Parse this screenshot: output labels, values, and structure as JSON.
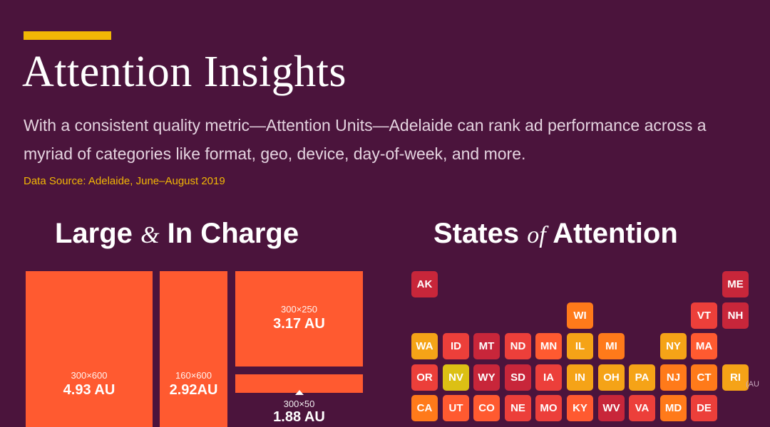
{
  "header": {
    "title": "Attention Insights",
    "subtitle": "With a consistent quality metric—Attention Units—Adelaide can rank ad performance across a myriad of categories like format, geo, device, day-of-week, and more.",
    "source": "Data Source: Adelaide, June–August 2019"
  },
  "colors": {
    "background": "#4b143c",
    "accent": "#f2b705",
    "box": "#ff5a30",
    "tile_scale": [
      "#a81c3f",
      "#c8263a",
      "#ec3f3a",
      "#ff5a30",
      "#ff7a1a",
      "#f5a317",
      "#dcc014"
    ]
  },
  "left_section": {
    "title_a": "Large",
    "connector": "&",
    "title_b": "In Charge"
  },
  "right_section": {
    "title_a": "States",
    "connector": "of",
    "title_b": "Attention"
  },
  "chart_data": [
    {
      "type": "bar",
      "title": "Large & In Charge",
      "categories": [
        "300×600",
        "160×600",
        "300×250",
        "300×50"
      ],
      "values": [
        4.93,
        2.92,
        3.17,
        1.88
      ],
      "labels": [
        "4.93 AU",
        "2.92AU",
        "3.17 AU",
        "1.88 AU"
      ]
    },
    {
      "type": "heatmap",
      "title": "States of Attention",
      "states": [
        {
          "code": "AK",
          "row": 0,
          "col": 0,
          "level": 1
        },
        {
          "code": "ME",
          "row": 0,
          "col": 10,
          "level": 1
        },
        {
          "code": "WI",
          "row": 1,
          "col": 5,
          "level": 4
        },
        {
          "code": "VT",
          "row": 1,
          "col": 9,
          "level": 2
        },
        {
          "code": "NH",
          "row": 1,
          "col": 10,
          "level": 1
        },
        {
          "code": "WA",
          "row": 2,
          "col": 0,
          "level": 5
        },
        {
          "code": "ID",
          "row": 2,
          "col": 1,
          "level": 2
        },
        {
          "code": "MT",
          "row": 2,
          "col": 2,
          "level": 1
        },
        {
          "code": "ND",
          "row": 2,
          "col": 3,
          "level": 2
        },
        {
          "code": "MN",
          "row": 2,
          "col": 4,
          "level": 3
        },
        {
          "code": "IL",
          "row": 2,
          "col": 5,
          "level": 5
        },
        {
          "code": "MI",
          "row": 2,
          "col": 6,
          "level": 4
        },
        {
          "code": "NY",
          "row": 2,
          "col": 8,
          "level": 5
        },
        {
          "code": "MA",
          "row": 2,
          "col": 9,
          "level": 3
        },
        {
          "code": "OR",
          "row": 3,
          "col": 0,
          "level": 2
        },
        {
          "code": "NV",
          "row": 3,
          "col": 1,
          "level": 6
        },
        {
          "code": "WY",
          "row": 3,
          "col": 2,
          "level": 1
        },
        {
          "code": "SD",
          "row": 3,
          "col": 3,
          "level": 1
        },
        {
          "code": "IA",
          "row": 3,
          "col": 4,
          "level": 2
        },
        {
          "code": "IN",
          "row": 3,
          "col": 5,
          "level": 5
        },
        {
          "code": "OH",
          "row": 3,
          "col": 6,
          "level": 5
        },
        {
          "code": "PA",
          "row": 3,
          "col": 7,
          "level": 5
        },
        {
          "code": "NJ",
          "row": 3,
          "col": 8,
          "level": 4
        },
        {
          "code": "CT",
          "row": 3,
          "col": 9,
          "level": 4
        },
        {
          "code": "RI",
          "row": 3,
          "col": 10,
          "level": 5
        },
        {
          "code": "CA",
          "row": 4,
          "col": 0,
          "level": 4
        },
        {
          "code": "UT",
          "row": 4,
          "col": 1,
          "level": 3
        },
        {
          "code": "CO",
          "row": 4,
          "col": 2,
          "level": 3
        },
        {
          "code": "NE",
          "row": 4,
          "col": 3,
          "level": 2
        },
        {
          "code": "MO",
          "row": 4,
          "col": 4,
          "level": 2
        },
        {
          "code": "KY",
          "row": 4,
          "col": 5,
          "level": 3
        },
        {
          "code": "WV",
          "row": 4,
          "col": 6,
          "level": 1
        },
        {
          "code": "VA",
          "row": 4,
          "col": 7,
          "level": 2
        },
        {
          "code": "MD",
          "row": 4,
          "col": 8,
          "level": 4
        },
        {
          "code": "DE",
          "row": 4,
          "col": 9,
          "level": 2
        }
      ],
      "legend_fragment": "(AU"
    }
  ]
}
